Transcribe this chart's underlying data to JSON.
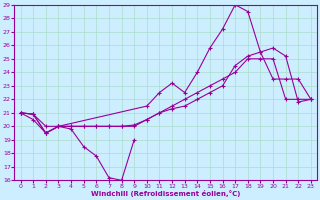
{
  "xlabel": "Windchill (Refroidissement éolien,°C)",
  "bg_color": "#cceeff",
  "line_color": "#990099",
  "grid_color": "#aaddcc",
  "xlim": [
    -0.5,
    23.5
  ],
  "ylim": [
    16,
    29
  ],
  "xticks": [
    0,
    1,
    2,
    3,
    4,
    5,
    6,
    7,
    8,
    9,
    10,
    11,
    12,
    13,
    14,
    15,
    16,
    17,
    18,
    19,
    20,
    21,
    22,
    23
  ],
  "yticks": [
    16,
    17,
    18,
    19,
    20,
    21,
    22,
    23,
    24,
    25,
    26,
    27,
    28,
    29
  ],
  "line1_x": [
    0,
    1,
    2,
    3,
    4,
    5,
    6,
    7,
    8,
    9
  ],
  "line1_y": [
    21.0,
    20.9,
    19.5,
    20.0,
    19.8,
    18.5,
    17.8,
    16.2,
    16.0,
    19.0
  ],
  "line2_x": [
    0,
    1,
    2,
    3,
    10,
    11,
    12,
    13,
    14,
    15,
    16,
    17,
    18,
    19,
    20,
    21,
    22,
    23
  ],
  "line2_y": [
    21.0,
    20.9,
    19.5,
    20.0,
    21.5,
    22.5,
    23.2,
    22.5,
    24.0,
    25.8,
    27.2,
    29.0,
    28.5,
    25.5,
    23.5,
    23.5,
    23.5,
    22.0
  ],
  "line3_x": [
    0,
    1,
    2,
    3,
    4,
    5,
    6,
    7,
    8,
    9,
    10,
    11,
    12,
    13,
    14,
    15,
    16,
    17,
    18,
    19,
    20,
    21,
    22,
    23
  ],
  "line3_y": [
    21.0,
    20.9,
    20.0,
    20.0,
    20.0,
    20.0,
    20.0,
    20.0,
    20.0,
    20.1,
    20.5,
    21.0,
    21.3,
    21.5,
    22.0,
    22.5,
    23.0,
    24.5,
    25.2,
    25.5,
    25.8,
    25.2,
    21.8,
    22.0
  ],
  "line4_x": [
    0,
    1,
    2,
    3,
    4,
    5,
    6,
    7,
    8,
    9,
    10,
    11,
    12,
    13,
    14,
    15,
    16,
    17,
    18,
    19,
    20,
    21,
    22,
    23
  ],
  "line4_y": [
    21.0,
    20.5,
    19.5,
    20.0,
    20.0,
    20.0,
    20.0,
    20.0,
    20.0,
    20.0,
    20.5,
    21.0,
    21.5,
    22.0,
    22.5,
    23.0,
    23.5,
    24.0,
    25.0,
    25.0,
    25.0,
    22.0,
    22.0,
    22.0
  ]
}
